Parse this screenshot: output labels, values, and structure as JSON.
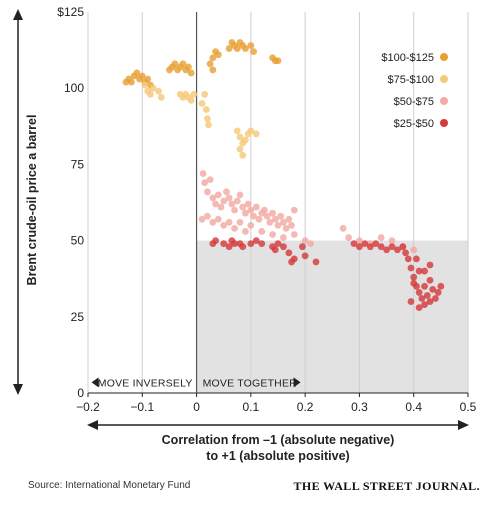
{
  "chart_data": {
    "type": "scatter",
    "ylabel": "Brent crude-oil price a barrel",
    "xlabel_line1": "Correlation from –1 (absolute negative)",
    "xlabel_line2": "to +1 (absolute positive)",
    "xlim": [
      -0.2,
      0.5
    ],
    "ylim": [
      0,
      125
    ],
    "x_ticks": [
      -0.2,
      -0.1,
      0,
      0.1,
      0.2,
      0.3,
      0.4,
      0.5
    ],
    "x_tick_labels": [
      "−0.2",
      "−0.1",
      "0",
      "0.1",
      "0.2",
      "0.3",
      "0.4",
      "0.5"
    ],
    "y_ticks": [
      0,
      25,
      50,
      75,
      100,
      125
    ],
    "y_tick_labels": [
      "0",
      "25",
      "50",
      "75",
      "100",
      "$125"
    ],
    "grid": "vertical",
    "shaded_region": {
      "x": [
        0,
        0.5
      ],
      "y": [
        0,
        50
      ]
    },
    "annotations": {
      "left": "MOVE INVERSELY",
      "right": "MOVE TOGETHER"
    },
    "legend_position": "top-right",
    "series": [
      {
        "name": "$100-$125",
        "color": "#e8a035",
        "points": [
          [
            -0.13,
            102
          ],
          [
            -0.125,
            103
          ],
          [
            -0.12,
            102
          ],
          [
            -0.115,
            104
          ],
          [
            -0.11,
            105
          ],
          [
            -0.105,
            103
          ],
          [
            -0.1,
            104
          ],
          [
            -0.095,
            102
          ],
          [
            -0.09,
            103
          ],
          [
            -0.085,
            101
          ],
          [
            -0.05,
            106
          ],
          [
            -0.045,
            107
          ],
          [
            -0.04,
            108
          ],
          [
            -0.035,
            106
          ],
          [
            -0.03,
            107
          ],
          [
            -0.025,
            108
          ],
          [
            -0.02,
            106
          ],
          [
            -0.015,
            107
          ],
          [
            -0.01,
            105
          ],
          [
            0.025,
            108
          ],
          [
            0.03,
            110
          ],
          [
            0.03,
            106
          ],
          [
            0.035,
            112
          ],
          [
            0.04,
            111
          ],
          [
            0.06,
            113
          ],
          [
            0.065,
            115
          ],
          [
            0.07,
            114
          ],
          [
            0.075,
            113
          ],
          [
            0.08,
            115
          ],
          [
            0.085,
            114
          ],
          [
            0.09,
            113
          ],
          [
            0.1,
            114
          ],
          [
            0.105,
            112
          ],
          [
            0.14,
            110
          ],
          [
            0.145,
            109
          ],
          [
            0.15,
            109
          ]
        ]
      },
      {
        "name": "$75-$100",
        "color": "#f5c97a",
        "points": [
          [
            -0.095,
            101
          ],
          [
            -0.09,
            99
          ],
          [
            -0.085,
            98
          ],
          [
            -0.08,
            100
          ],
          [
            -0.07,
            99
          ],
          [
            -0.065,
            97
          ],
          [
            -0.03,
            98
          ],
          [
            -0.025,
            97
          ],
          [
            -0.02,
            98
          ],
          [
            -0.015,
            97
          ],
          [
            -0.01,
            96
          ],
          [
            -0.005,
            98
          ],
          [
            0.01,
            95
          ],
          [
            0.015,
            98
          ],
          [
            0.018,
            93
          ],
          [
            0.02,
            90
          ],
          [
            0.022,
            88
          ],
          [
            0.075,
            86
          ],
          [
            0.08,
            84
          ],
          [
            0.085,
            82
          ],
          [
            0.09,
            83
          ],
          [
            0.08,
            80
          ],
          [
            0.085,
            78
          ],
          [
            0.095,
            85
          ],
          [
            0.1,
            86
          ],
          [
            0.11,
            85
          ]
        ]
      },
      {
        "name": "$50-$75",
        "color": "#f3aaa4",
        "points": [
          [
            0.012,
            72
          ],
          [
            0.015,
            69
          ],
          [
            0.02,
            66
          ],
          [
            0.025,
            70
          ],
          [
            0.03,
            64
          ],
          [
            0.035,
            62
          ],
          [
            0.04,
            65
          ],
          [
            0.045,
            61
          ],
          [
            0.05,
            63
          ],
          [
            0.055,
            66
          ],
          [
            0.06,
            64
          ],
          [
            0.065,
            62
          ],
          [
            0.07,
            60
          ],
          [
            0.075,
            63
          ],
          [
            0.08,
            65
          ],
          [
            0.085,
            61
          ],
          [
            0.09,
            59
          ],
          [
            0.095,
            62
          ],
          [
            0.1,
            60
          ],
          [
            0.105,
            58
          ],
          [
            0.11,
            61
          ],
          [
            0.115,
            57
          ],
          [
            0.12,
            59
          ],
          [
            0.125,
            60
          ],
          [
            0.13,
            58
          ],
          [
            0.135,
            56
          ],
          [
            0.14,
            59
          ],
          [
            0.145,
            57
          ],
          [
            0.15,
            55
          ],
          [
            0.155,
            58
          ],
          [
            0.16,
            56
          ],
          [
            0.165,
            54
          ],
          [
            0.17,
            57
          ],
          [
            0.175,
            55
          ],
          [
            0.18,
            60
          ],
          [
            0.01,
            57
          ],
          [
            0.02,
            58
          ],
          [
            0.03,
            56
          ],
          [
            0.04,
            57
          ],
          [
            0.05,
            55
          ],
          [
            0.06,
            56
          ],
          [
            0.07,
            54
          ],
          [
            0.08,
            56
          ],
          [
            0.09,
            53
          ],
          [
            0.1,
            55
          ],
          [
            0.12,
            53
          ],
          [
            0.14,
            52
          ],
          [
            0.16,
            51
          ],
          [
            0.18,
            52
          ],
          [
            0.2,
            50
          ],
          [
            0.21,
            49
          ],
          [
            0.27,
            54
          ],
          [
            0.28,
            51
          ],
          [
            0.3,
            50
          ],
          [
            0.32,
            49
          ],
          [
            0.34,
            51
          ],
          [
            0.36,
            50
          ],
          [
            0.38,
            48
          ],
          [
            0.4,
            47
          ]
        ]
      },
      {
        "name": "$25-$50",
        "color": "#d63a3a",
        "points": [
          [
            0.03,
            49
          ],
          [
            0.035,
            50
          ],
          [
            0.05,
            49
          ],
          [
            0.06,
            48
          ],
          [
            0.065,
            50
          ],
          [
            0.07,
            49
          ],
          [
            0.08,
            49
          ],
          [
            0.085,
            48
          ],
          [
            0.1,
            49
          ],
          [
            0.11,
            50
          ],
          [
            0.12,
            49
          ],
          [
            0.14,
            48
          ],
          [
            0.145,
            47
          ],
          [
            0.15,
            49
          ],
          [
            0.16,
            48
          ],
          [
            0.17,
            46
          ],
          [
            0.175,
            43
          ],
          [
            0.18,
            44
          ],
          [
            0.195,
            48
          ],
          [
            0.2,
            45
          ],
          [
            0.22,
            43
          ],
          [
            0.29,
            49
          ],
          [
            0.3,
            48
          ],
          [
            0.31,
            49
          ],
          [
            0.32,
            48
          ],
          [
            0.33,
            49
          ],
          [
            0.34,
            48
          ],
          [
            0.35,
            47
          ],
          [
            0.36,
            48
          ],
          [
            0.37,
            47
          ],
          [
            0.38,
            48
          ],
          [
            0.385,
            46
          ],
          [
            0.39,
            44
          ],
          [
            0.395,
            41
          ],
          [
            0.4,
            38
          ],
          [
            0.4,
            36
          ],
          [
            0.405,
            35
          ],
          [
            0.41,
            40
          ],
          [
            0.41,
            33
          ],
          [
            0.415,
            31
          ],
          [
            0.42,
            29
          ],
          [
            0.42,
            35
          ],
          [
            0.425,
            32
          ],
          [
            0.43,
            30
          ],
          [
            0.43,
            37
          ],
          [
            0.435,
            34
          ],
          [
            0.44,
            31
          ],
          [
            0.445,
            33
          ],
          [
            0.45,
            35
          ],
          [
            0.395,
            30
          ],
          [
            0.41,
            28
          ],
          [
            0.405,
            44
          ],
          [
            0.42,
            40
          ],
          [
            0.43,
            42
          ]
        ]
      }
    ]
  },
  "footer": {
    "source": "Source: International Monetary Fund",
    "brand": "THE WALL STREET JOURNAL."
  }
}
